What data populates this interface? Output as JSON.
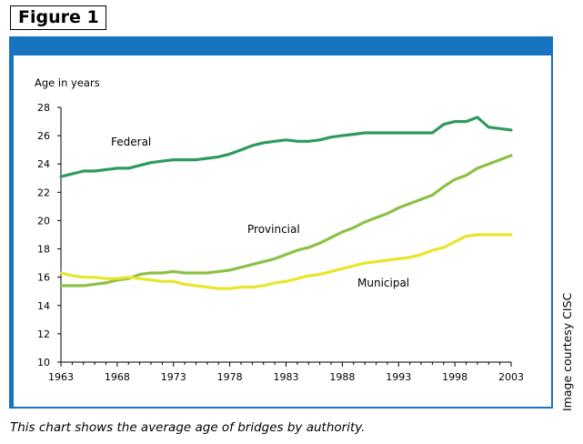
{
  "figure_label": "Figure 1",
  "credit": "Image courtesy CISC",
  "caption": "This chart shows the average age of bridges by authority.",
  "colors": {
    "frame": "#1873c0",
    "federal": "#2e9a5e",
    "provincial": "#8dc045",
    "municipal": "#e8e62a"
  },
  "chart_data": {
    "type": "line",
    "title": "",
    "ylabel": "Age in years",
    "xlabel": "",
    "xlim": [
      1963,
      2003
    ],
    "ylim": [
      10,
      28
    ],
    "x_ticks": [
      "1963",
      "1968",
      "1973",
      "1978",
      "1983",
      "1988",
      "1993",
      "1998",
      "2003"
    ],
    "y_ticks": [
      "10",
      "12",
      "14",
      "16",
      "18",
      "20",
      "22",
      "24",
      "26",
      "28"
    ],
    "grid": false,
    "x": [
      1963,
      1964,
      1965,
      1966,
      1967,
      1968,
      1969,
      1970,
      1971,
      1972,
      1973,
      1974,
      1975,
      1976,
      1977,
      1978,
      1979,
      1980,
      1981,
      1982,
      1983,
      1984,
      1985,
      1986,
      1987,
      1988,
      1989,
      1990,
      1991,
      1992,
      1993,
      1994,
      1995,
      1996,
      1997,
      1998,
      1999,
      2000,
      2001,
      2002,
      2003
    ],
    "series": [
      {
        "name": "Federal",
        "values": [
          23.1,
          23.3,
          23.5,
          23.5,
          23.6,
          23.7,
          23.7,
          23.9,
          24.1,
          24.2,
          24.3,
          24.3,
          24.3,
          24.4,
          24.5,
          24.7,
          25.0,
          25.3,
          25.5,
          25.6,
          25.7,
          25.6,
          25.6,
          25.7,
          25.9,
          26.0,
          26.1,
          26.2,
          26.2,
          26.2,
          26.2,
          26.2,
          26.2,
          26.2,
          26.8,
          27.0,
          27.0,
          27.3,
          26.6,
          26.5,
          26.4
        ]
      },
      {
        "name": "Provincial",
        "values": [
          15.4,
          15.4,
          15.4,
          15.5,
          15.6,
          15.8,
          15.9,
          16.2,
          16.3,
          16.3,
          16.4,
          16.3,
          16.3,
          16.3,
          16.4,
          16.5,
          16.7,
          16.9,
          17.1,
          17.3,
          17.6,
          17.9,
          18.1,
          18.4,
          18.8,
          19.2,
          19.5,
          19.9,
          20.2,
          20.5,
          20.9,
          21.2,
          21.5,
          21.8,
          22.4,
          22.9,
          23.2,
          23.7,
          24.0,
          24.3,
          24.6
        ]
      },
      {
        "name": "Municipal",
        "values": [
          16.3,
          16.1,
          16.0,
          16.0,
          15.9,
          15.9,
          16.0,
          15.9,
          15.8,
          15.7,
          15.7,
          15.5,
          15.4,
          15.3,
          15.2,
          15.2,
          15.3,
          15.3,
          15.4,
          15.6,
          15.7,
          15.9,
          16.1,
          16.2,
          16.4,
          16.6,
          16.8,
          17.0,
          17.1,
          17.2,
          17.3,
          17.4,
          17.6,
          17.9,
          18.1,
          18.5,
          18.9,
          19.0,
          19.0,
          19.0,
          19.0
        ]
      }
    ],
    "annotations": [
      "Federal",
      "Provincial",
      "Municipal"
    ]
  }
}
